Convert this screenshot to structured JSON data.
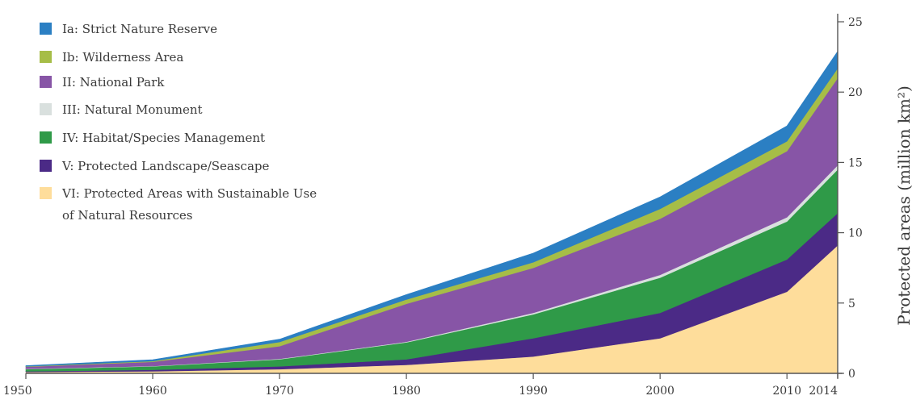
{
  "chart_data": {
    "type": "area",
    "stacked": true,
    "x": [
      1950,
      1960,
      1970,
      1980,
      1990,
      2000,
      2010,
      2014
    ],
    "xlim": [
      1950,
      2014
    ],
    "ylim": [
      0,
      25
    ],
    "x_tick_labels": [
      "1950",
      "1960",
      "1970",
      "1980",
      "1990",
      "2000",
      "2010",
      "2014"
    ],
    "y_tick_labels": [
      "0",
      "5",
      "10",
      "15",
      "20",
      "25"
    ],
    "y_ticks": [
      0,
      5,
      10,
      15,
      20,
      25
    ],
    "ylabel": "Protected areas (million km²)",
    "xlabel": "",
    "title": "",
    "grid": false,
    "y_axis_position": "right",
    "legend_placement": "top-left",
    "series": [
      {
        "name": "VI: Protected Areas with Sustainable Use of Natural Resources",
        "legend_lines": [
          "VI: Protected Areas with Sustainable Use",
          "of Natural Resources"
        ],
        "color": "#fedd9b",
        "values": [
          0.1,
          0.15,
          0.3,
          0.6,
          1.2,
          2.5,
          5.8,
          9.1
        ]
      },
      {
        "name": "V: Protected Landscape/Seascape",
        "legend_lines": [
          "V: Protected Landscape/Seascape"
        ],
        "color": "#4b2a86",
        "values": [
          0.05,
          0.1,
          0.2,
          0.4,
          1.3,
          1.8,
          2.3,
          2.3
        ]
      },
      {
        "name": "IV: Habitat/Species Management",
        "legend_lines": [
          "IV: Habitat/Species Management"
        ],
        "color": "#2f9a48",
        "values": [
          0.15,
          0.25,
          0.5,
          1.2,
          1.7,
          2.5,
          2.7,
          3.1
        ]
      },
      {
        "name": "III: Natural Monument",
        "legend_lines": [
          "III: Natural Monument"
        ],
        "color": "#d9e0de",
        "values": [
          0.02,
          0.02,
          0.03,
          0.05,
          0.1,
          0.2,
          0.3,
          0.3
        ]
      },
      {
        "name": "II: National Park",
        "legend_lines": [
          "II: National Park"
        ],
        "color": "#8755a6",
        "values": [
          0.15,
          0.3,
          0.9,
          2.7,
          3.2,
          4.0,
          4.7,
          6.2
        ]
      },
      {
        "name": "Ib: Wilderness Area",
        "legend_lines": [
          "Ib: Wilderness Area"
        ],
        "color": "#a6bd47",
        "values": [
          0.03,
          0.05,
          0.3,
          0.3,
          0.4,
          0.7,
          0.7,
          0.7
        ]
      },
      {
        "name": "Ia: Strict Nature Reserve",
        "legend_lines": [
          "Ia: Strict Nature Reserve"
        ],
        "color": "#2b7fc3",
        "values": [
          0.05,
          0.1,
          0.2,
          0.35,
          0.65,
          0.85,
          1.1,
          1.2
        ]
      }
    ],
    "legend_order": [
      6,
      5,
      4,
      3,
      2,
      1,
      0
    ]
  }
}
